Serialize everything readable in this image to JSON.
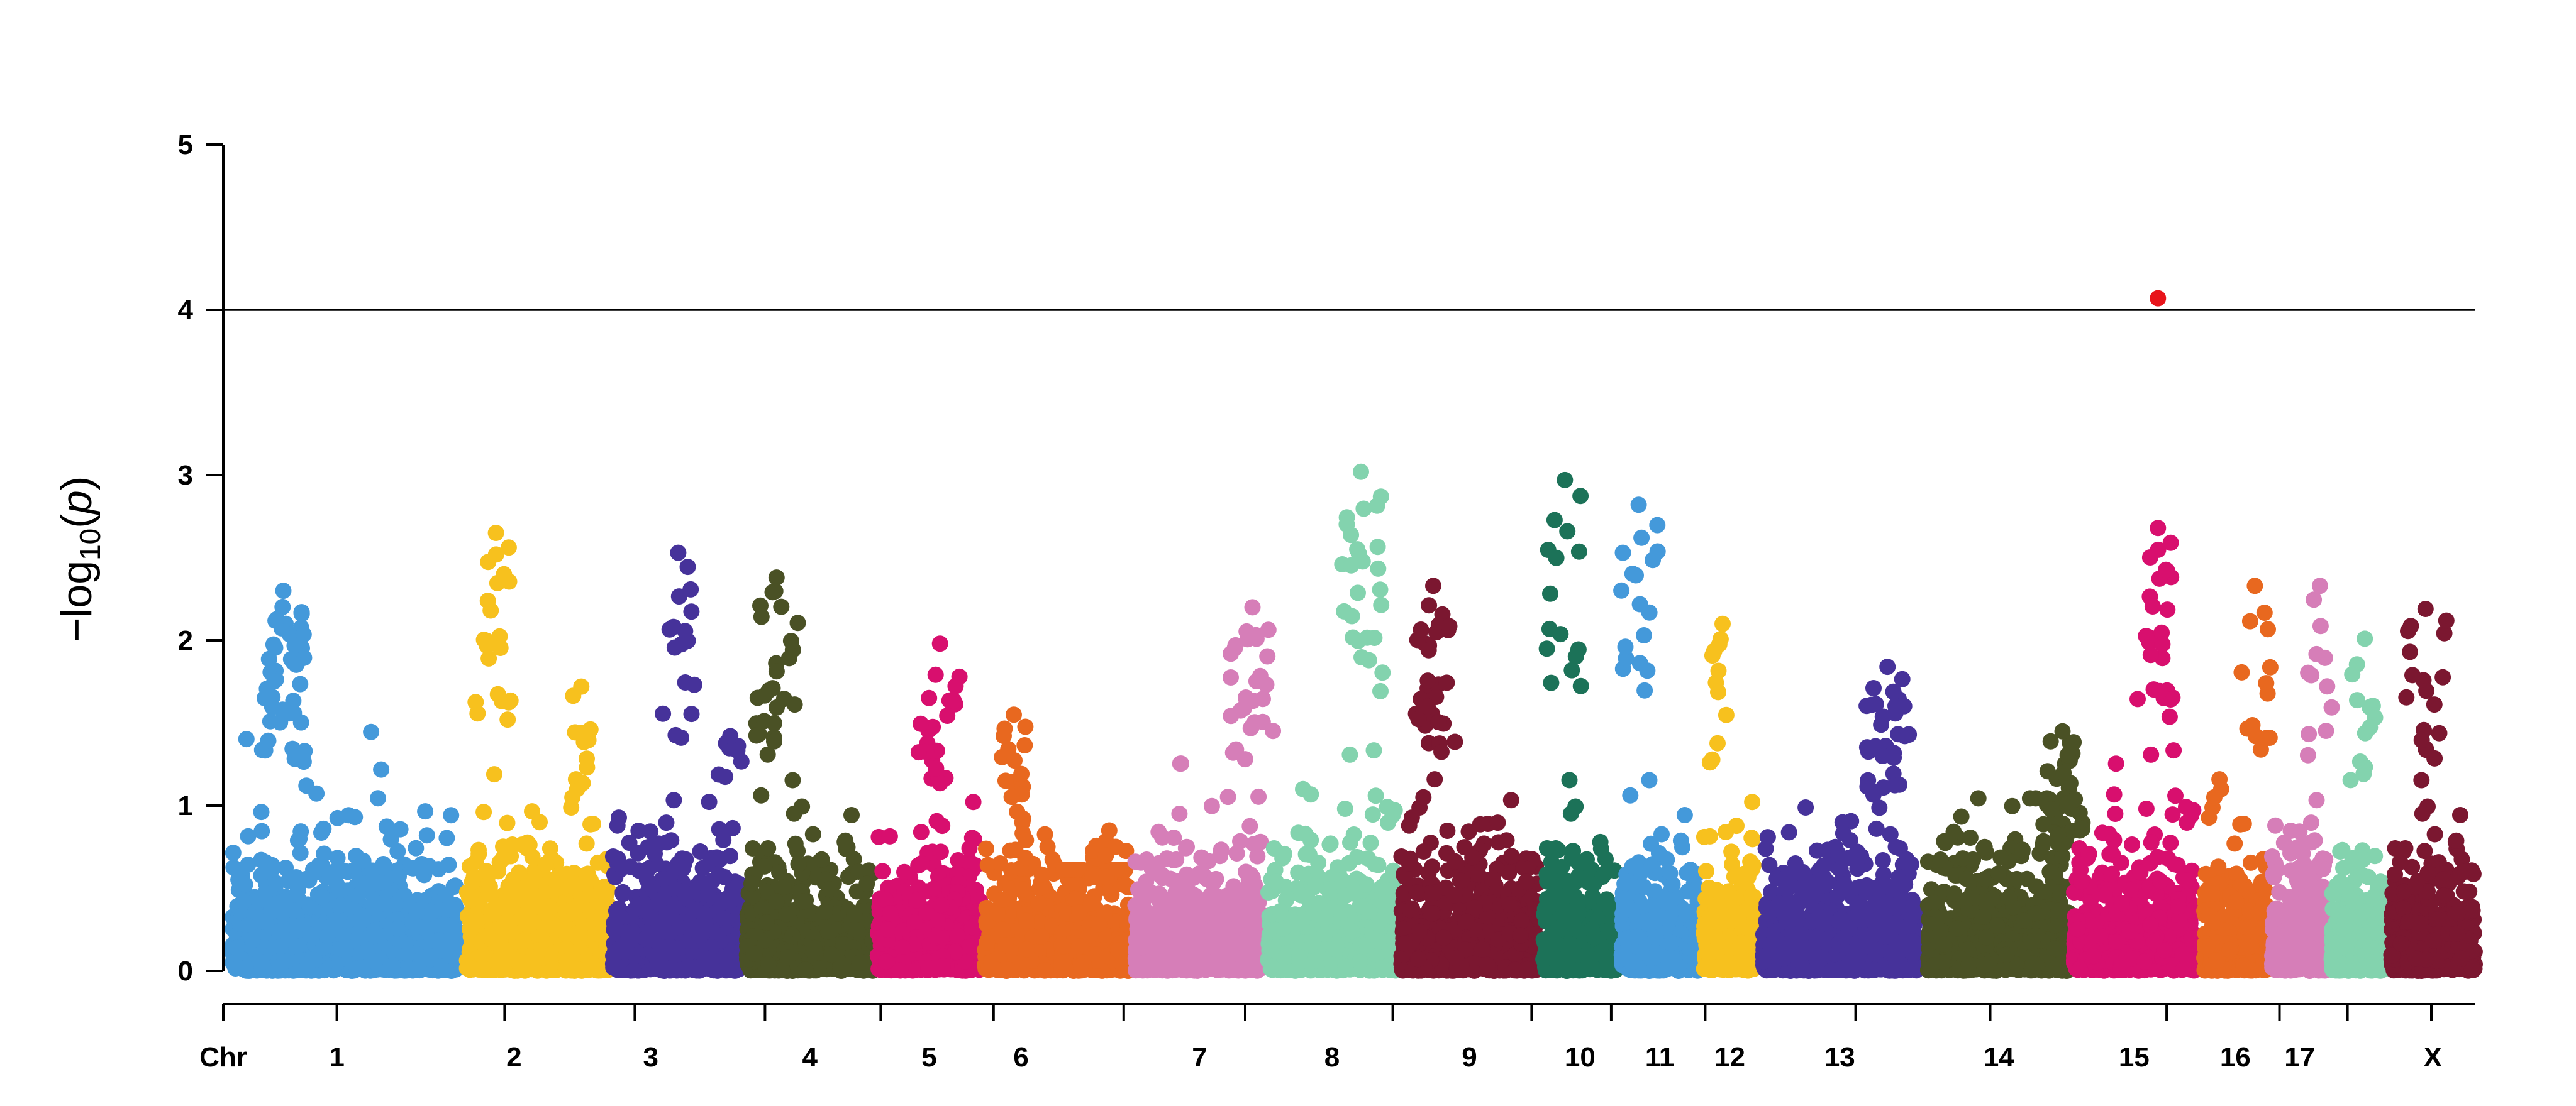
{
  "chart_data": {
    "type": "scatter",
    "subtype": "manhattan",
    "title": "",
    "xlabel": "",
    "ylabel": {
      "prefix": "−log",
      "subscript": "10",
      "open": "(",
      "variable": "p",
      "close": ")"
    },
    "x_axis_title_label": "Chr",
    "ylim": [
      0,
      5
    ],
    "y_ticks": [
      "0",
      "1",
      "2",
      "3",
      "4",
      "5"
    ],
    "threshold": 4,
    "grid": false,
    "legend": "none",
    "highlight_color": "#E8141B",
    "chromosomes": [
      {
        "label": "1",
        "start": 0.0,
        "end": 15.5,
        "color": "#4499DA",
        "max_pos": 3.5,
        "max": 2.3
      },
      {
        "label": "2",
        "start": 16.2,
        "end": 22.7,
        "color": "#F7C11E",
        "max_pos": 18.2,
        "max": 2.65
      },
      {
        "label": "",
        "start": 23.0,
        "end": 26.0,
        "color": "#F7C11E",
        "max_pos": 24.1,
        "max": 1.72
      },
      {
        "label": "3",
        "start": 26.3,
        "end": 31.5,
        "color": "#46329A",
        "max_pos": 30.8,
        "max": 2.53
      },
      {
        "label": "",
        "start": 31.8,
        "end": 35.0,
        "color": "#46329A",
        "max_pos": 34.4,
        "max": 1.42
      },
      {
        "label": "4",
        "start": 35.5,
        "end": 44.3,
        "color": "#4A5125",
        "max_pos": 37.6,
        "max": 2.38
      },
      {
        "label": "5",
        "start": 44.6,
        "end": 51.7,
        "color": "#D80F6E",
        "max_pos": 48.9,
        "max": 1.98
      },
      {
        "label": "6",
        "start": 52.0,
        "end": 57.0,
        "color": "#E8681F",
        "max_pos": 54.0,
        "max": 1.55
      },
      {
        "label": "",
        "start": 57.3,
        "end": 62.0,
        "color": "#E8681F",
        "max_pos": 60.6,
        "max": 0.85
      },
      {
        "label": "7",
        "start": 62.4,
        "end": 71.3,
        "color": "#D67EB8",
        "max_pos": 70.5,
        "max": 2.2
      },
      {
        "label": "8",
        "start": 71.6,
        "end": 80.4,
        "color": "#83D3AE",
        "max_pos": 78.0,
        "max": 3.02
      },
      {
        "label": "9",
        "start": 80.8,
        "end": 90.2,
        "color": "#7B1730",
        "max_pos": 83.0,
        "max": 2.33
      },
      {
        "label": "10",
        "start": 90.6,
        "end": 95.7,
        "color": "#1C7258",
        "max_pos": 92.1,
        "max": 2.97
      },
      {
        "label": "11",
        "start": 96.0,
        "end": 101.3,
        "color": "#4499DA",
        "max_pos": 97.2,
        "max": 2.82
      },
      {
        "label": "12",
        "start": 101.7,
        "end": 105.3,
        "color": "#F7C11E",
        "max_pos": 103.0,
        "max": 2.1
      },
      {
        "label": "13",
        "start": 105.8,
        "end": 116.4,
        "color": "#46329A",
        "max_pos": 114.4,
        "max": 1.84
      },
      {
        "label": "14",
        "start": 117.2,
        "end": 127.0,
        "color": "#4A5125",
        "max_pos": 126.5,
        "max": 1.45
      },
      {
        "label": "15",
        "start": 127.3,
        "end": 135.6,
        "color": "#D80F6E",
        "max_pos": 133.1,
        "max": 2.68,
        "top_pos": 133.1,
        "top": 4.07
      },
      {
        "label": "16",
        "start": 136.3,
        "end": 140.6,
        "color": "#E8681F",
        "max_pos": 139.8,
        "max": 2.33
      },
      {
        "label": "17",
        "start": 141.0,
        "end": 144.8,
        "color": "#D67EB8",
        "max_pos": 144.3,
        "max": 2.33
      },
      {
        "label": "",
        "start": 145.1,
        "end": 148.8,
        "color": "#83D3AE",
        "max_pos": 147.4,
        "max": 2.01
      },
      {
        "label": "X",
        "start": 149.2,
        "end": 155.0,
        "color": "#7B1730",
        "max_pos": 151.6,
        "max": 2.19
      }
    ],
    "x_tick_positions": [
      0,
      7.2,
      18.8,
      27.8,
      36.8,
      44.8,
      52.6,
      61.6,
      70.0,
      80.2,
      89.8,
      95.3,
      101.8,
      112.2,
      121.5,
      133.7,
      141.5,
      146.2,
      152.0
    ]
  }
}
